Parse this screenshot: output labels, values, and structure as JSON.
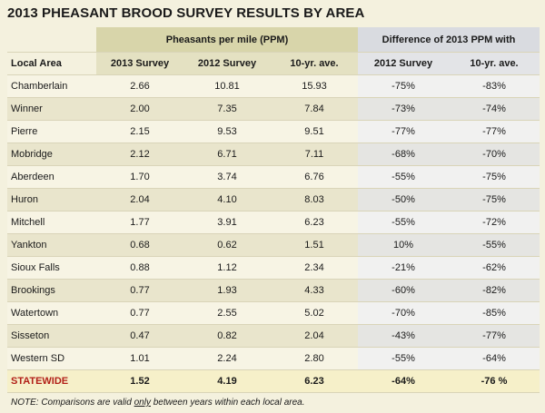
{
  "title": "2013 PHEASANT BROOD SURVEY RESULTS BY AREA",
  "headers": {
    "group_ppm": "Pheasants per mile (PPM)",
    "group_diff": "Difference of 2013 PPM with",
    "local_area": "Local Area",
    "survey_2013": "2013 Survey",
    "survey_2012": "2012 Survey",
    "ten_yr": "10-yr. ave.",
    "diff_2012": "2012 Survey",
    "diff_10yr": "10-yr. ave."
  },
  "rows": [
    {
      "area": "Chamberlain",
      "s2013": "2.66",
      "s2012": "10.81",
      "avg10": "15.93",
      "d2012": "-75%",
      "d10": "-83%"
    },
    {
      "area": "Winner",
      "s2013": "2.00",
      "s2012": "7.35",
      "avg10": "7.84",
      "d2012": "-73%",
      "d10": "-74%"
    },
    {
      "area": "Pierre",
      "s2013": "2.15",
      "s2012": "9.53",
      "avg10": "9.51",
      "d2012": "-77%",
      "d10": "-77%"
    },
    {
      "area": "Mobridge",
      "s2013": "2.12",
      "s2012": "6.71",
      "avg10": "7.11",
      "d2012": "-68%",
      "d10": "-70%"
    },
    {
      "area": "Aberdeen",
      "s2013": "1.70",
      "s2012": "3.74",
      "avg10": "6.76",
      "d2012": "-55%",
      "d10": "-75%"
    },
    {
      "area": "Huron",
      "s2013": "2.04",
      "s2012": "4.10",
      "avg10": "8.03",
      "d2012": "-50%",
      "d10": "-75%"
    },
    {
      "area": "Mitchell",
      "s2013": "1.77",
      "s2012": "3.91",
      "avg10": "6.23",
      "d2012": "-55%",
      "d10": "-72%"
    },
    {
      "area": "Yankton",
      "s2013": "0.68",
      "s2012": "0.62",
      "avg10": "1.51",
      "d2012": "10%",
      "d10": "-55%"
    },
    {
      "area": "Sioux Falls",
      "s2013": "0.88",
      "s2012": "1.12",
      "avg10": "2.34",
      "d2012": "-21%",
      "d10": "-62%"
    },
    {
      "area": "Brookings",
      "s2013": "0.77",
      "s2012": "1.93",
      "avg10": "4.33",
      "d2012": "-60%",
      "d10": "-82%"
    },
    {
      "area": "Watertown",
      "s2013": "0.77",
      "s2012": "2.55",
      "avg10": "5.02",
      "d2012": "-70%",
      "d10": "-85%"
    },
    {
      "area": "Sisseton",
      "s2013": "0.47",
      "s2012": "0.82",
      "avg10": "2.04",
      "d2012": "-43%",
      "d10": "-77%"
    },
    {
      "area": "Western SD",
      "s2013": "1.01",
      "s2012": "2.24",
      "avg10": "2.80",
      "d2012": "-55%",
      "d10": "-64%"
    }
  ],
  "statewide": {
    "area": "STATEWIDE",
    "s2013": "1.52",
    "s2012": "4.19",
    "avg10": "6.23",
    "d2012": "-64%",
    "d10": "-76 %"
  },
  "note": {
    "prefix": "NOTE: Comparisons are valid ",
    "emphasis": "only",
    "suffix": " between years within each local area."
  },
  "colors": {
    "background": "#f4f1de",
    "ppm_header": "#d8d5aa",
    "diff_header": "#d9dbe0",
    "statewide_label": "#b22018"
  }
}
